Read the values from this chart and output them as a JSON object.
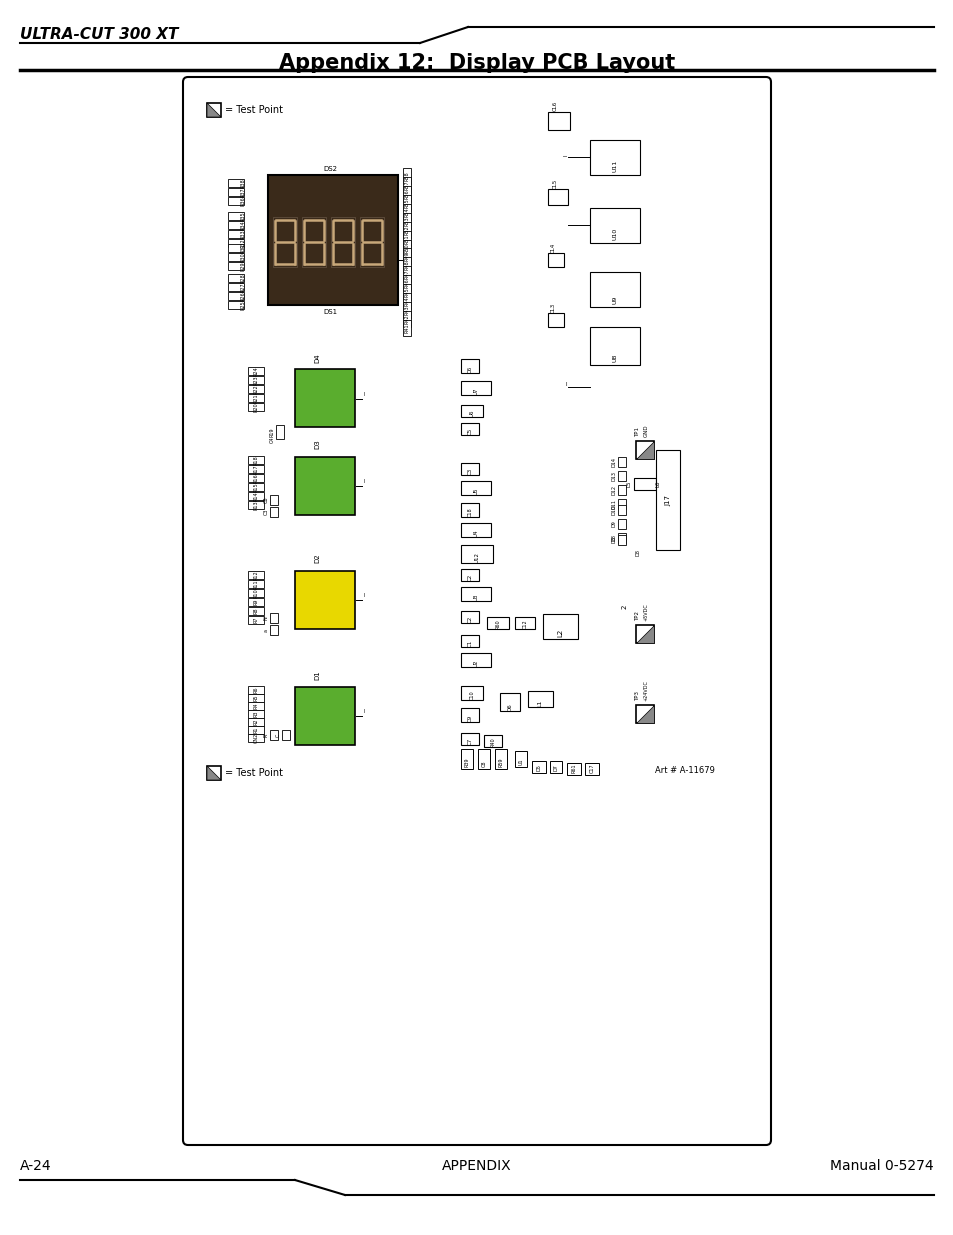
{
  "title": "Appendix 12:  Display PCB Layout",
  "header_label": "ULTRA-CUT 300 XT",
  "footer_left": "A-24",
  "footer_center": "APPENDIX",
  "footer_right": "Manual 0-5274",
  "art_number": "Art # A-11679",
  "bg_color": "#ffffff",
  "display_dark_brown": "#3a2a1a",
  "green_color": "#5aad2e",
  "yellow_color": "#e8d800",
  "gray_color": "#888888"
}
